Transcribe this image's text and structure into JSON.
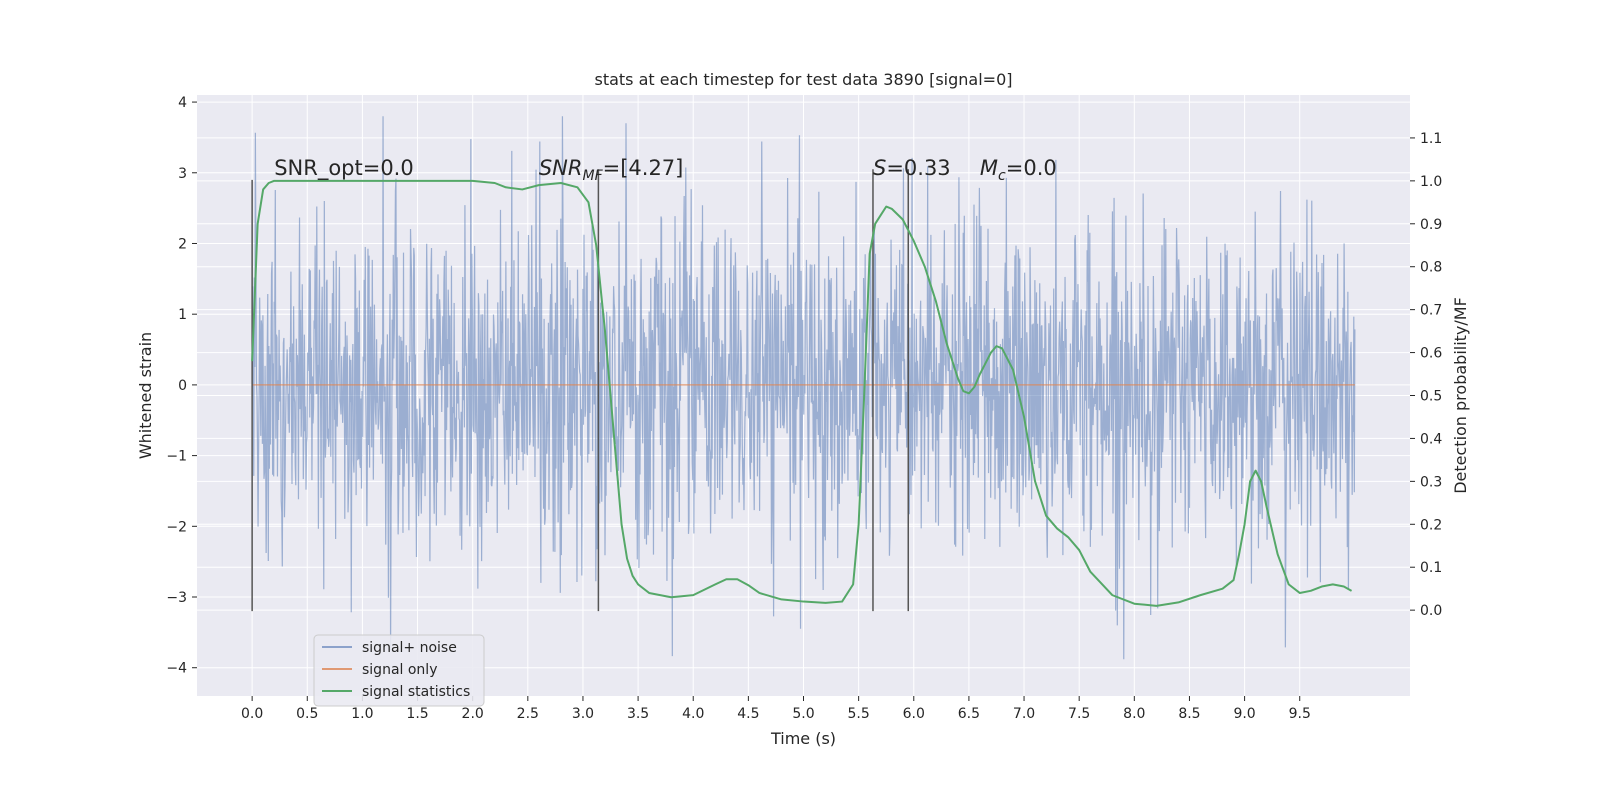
{
  "chart_data": {
    "type": "line",
    "title": "stats at each timestep for test data 3890 [signal=0]",
    "xlabel": "Time (s)",
    "ylabel_left": "Whitened strain",
    "ylabel_right": "Detection probability/MF",
    "xlim": [
      -0.5,
      10.5
    ],
    "ylim_left": [
      -4.4,
      4.1
    ],
    "ylim_right": [
      -0.2,
      1.2
    ],
    "x_ticks": [
      "0.0",
      "0.5",
      "1.0",
      "1.5",
      "2.0",
      "2.5",
      "3.0",
      "3.5",
      "4.0",
      "4.5",
      "5.0",
      "5.5",
      "6.0",
      "6.5",
      "7.0",
      "7.5",
      "8.0",
      "8.5",
      "9.0",
      "9.5"
    ],
    "y_ticks_left": [
      "−4",
      "−3",
      "−2",
      "−1",
      "0",
      "1",
      "2",
      "3",
      "4"
    ],
    "y_ticks_right": [
      "0.0",
      "0.1",
      "0.2",
      "0.3",
      "0.4",
      "0.5",
      "0.6",
      "0.7",
      "0.8",
      "0.9",
      "1.0",
      "1.1"
    ],
    "grid": true,
    "legend_position": "lower-left",
    "colors": {
      "background": "#eaeaf2",
      "grid": "#ffffff",
      "noise": "#4c72b0",
      "signal_only": "#dd8452",
      "statistics": "#55a868",
      "vlines": "#555555"
    },
    "series": [
      {
        "name": "signal+ noise",
        "axis": "left",
        "note_values": "dense whitened strain noise, roughly within ±3.5",
        "noise_seed": 3890,
        "noise_sigma": 1.15,
        "x_range": [
          0.0,
          10.0
        ]
      },
      {
        "name": "signal only",
        "axis": "left",
        "x": [
          0.0,
          10.0
        ],
        "y": [
          0.0,
          0.0
        ]
      },
      {
        "name": "signal statistics",
        "axis": "right",
        "x": [
          0.0,
          0.05,
          0.1,
          0.15,
          0.2,
          0.3,
          0.5,
          1.0,
          1.5,
          2.0,
          2.2,
          2.3,
          2.45,
          2.6,
          2.8,
          2.95,
          3.05,
          3.12,
          3.2,
          3.3,
          3.35,
          3.4,
          3.45,
          3.5,
          3.6,
          3.8,
          4.0,
          4.2,
          4.3,
          4.4,
          4.5,
          4.6,
          4.8,
          5.0,
          5.2,
          5.35,
          5.45,
          5.5,
          5.55,
          5.6,
          5.65,
          5.7,
          5.75,
          5.8,
          5.9,
          6.0,
          6.1,
          6.2,
          6.3,
          6.4,
          6.45,
          6.5,
          6.55,
          6.6,
          6.7,
          6.75,
          6.8,
          6.9,
          7.0,
          7.1,
          7.2,
          7.3,
          7.4,
          7.5,
          7.6,
          7.8,
          8.0,
          8.2,
          8.4,
          8.6,
          8.8,
          8.9,
          8.95,
          9.0,
          9.05,
          9.1,
          9.15,
          9.2,
          9.3,
          9.4,
          9.5,
          9.6,
          9.7,
          9.8,
          9.9,
          9.97
        ],
        "y": [
          0.58,
          0.9,
          0.98,
          0.995,
          1.0,
          1.0,
          1.0,
          1.0,
          1.0,
          1.0,
          0.995,
          0.985,
          0.98,
          0.99,
          0.995,
          0.985,
          0.95,
          0.85,
          0.65,
          0.35,
          0.2,
          0.12,
          0.08,
          0.06,
          0.04,
          0.03,
          0.035,
          0.06,
          0.072,
          0.072,
          0.058,
          0.04,
          0.025,
          0.02,
          0.017,
          0.02,
          0.06,
          0.2,
          0.5,
          0.83,
          0.9,
          0.92,
          0.94,
          0.935,
          0.91,
          0.86,
          0.8,
          0.72,
          0.62,
          0.54,
          0.51,
          0.505,
          0.52,
          0.55,
          0.6,
          0.615,
          0.61,
          0.56,
          0.45,
          0.3,
          0.22,
          0.19,
          0.17,
          0.14,
          0.09,
          0.035,
          0.015,
          0.01,
          0.018,
          0.035,
          0.05,
          0.07,
          0.13,
          0.2,
          0.3,
          0.325,
          0.3,
          0.24,
          0.13,
          0.06,
          0.04,
          0.045,
          0.055,
          0.06,
          0.055,
          0.045
        ]
      }
    ],
    "vlines": [
      {
        "x": 0.0,
        "y_left": [
          -3.2,
          2.9
        ]
      },
      {
        "x": 3.14,
        "y_left": [
          -3.2,
          3.05
        ]
      },
      {
        "x": 5.63,
        "y_left": [
          -3.2,
          3.05
        ]
      },
      {
        "x": 5.95,
        "y_left": [
          -3.2,
          3.05
        ]
      }
    ],
    "annotations": [
      {
        "text": "SNR_opt=0.0",
        "x": 0.2,
        "y_left": 3.0,
        "italic": false
      },
      {
        "text": "SNR",
        "sub": "MF",
        "rest": "=[4.27]",
        "x": 2.6,
        "y_left": 3.0,
        "italic": true
      },
      {
        "text": "S",
        "rest": "=0.33",
        "x": 5.63,
        "y_left": 3.0,
        "italic": true
      },
      {
        "text": "M",
        "sub": "c",
        "rest": "=0.0",
        "x": 6.6,
        "y_left": 3.0,
        "italic": true
      }
    ]
  }
}
